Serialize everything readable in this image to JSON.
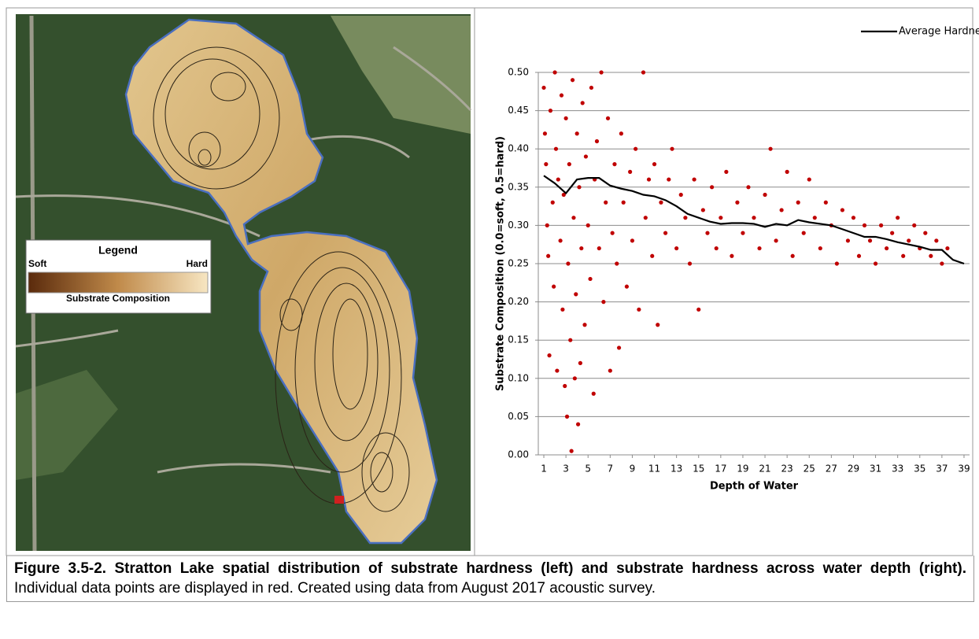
{
  "map": {
    "legend_title": "Legend",
    "soft_label": "Soft",
    "hard_label": "Hard",
    "bar_label": "Substrate Composition"
  },
  "chart_data": {
    "type": "scatter",
    "xlabel": "Depth of Water",
    "ylabel": "Substrate Composition (0.0=soft, 0.5=hard)",
    "xlim": [
      0.5,
      39.5
    ],
    "xticks": [
      1,
      3,
      5,
      7,
      9,
      11,
      13,
      15,
      17,
      19,
      21,
      23,
      25,
      27,
      29,
      31,
      33,
      35,
      37,
      39
    ],
    "ylim": [
      0,
      0.5
    ],
    "yticks": [
      {
        "value": 0,
        "label": "0.00"
      },
      {
        "value": 0.05,
        "label": "0.05"
      },
      {
        "value": 0.1,
        "label": "0.10"
      },
      {
        "value": 0.15,
        "label": "0.15"
      },
      {
        "value": 0.2,
        "label": "0.20"
      },
      {
        "value": 0.25,
        "label": "0.25"
      },
      {
        "value": 0.3,
        "label": "0.30"
      },
      {
        "value": 0.35,
        "label": "0.35"
      },
      {
        "value": 0.4,
        "label": "0.40"
      },
      {
        "value": 0.45,
        "label": "0.45"
      },
      {
        "value": 0.5,
        "label": "0.50"
      }
    ],
    "grid": true,
    "legend": "top-right",
    "series": [
      {
        "color": "#c00000",
        "x": [
          1.0,
          1.1,
          1.2,
          1.3,
          1.4,
          1.5,
          1.6,
          1.8,
          1.9,
          2.0,
          2.1,
          2.2,
          2.3,
          2.5,
          2.6,
          2.7,
          2.8,
          2.9,
          3.0,
          3.1,
          3.2,
          3.3,
          3.4,
          3.5,
          3.6,
          3.7,
          3.8,
          3.9,
          4.0,
          4.1,
          4.2,
          4.3,
          4.4,
          4.5,
          4.7,
          4.8,
          5.0,
          5.2,
          5.3,
          5.5,
          5.6,
          5.8,
          6.0,
          6.2,
          6.4,
          6.6,
          6.8,
          7.0,
          7.2,
          7.4,
          7.6,
          7.8,
          8.0,
          8.2,
          8.5,
          8.8,
          9.0,
          9.3,
          9.6,
          10.0,
          10.2,
          10.5,
          10.8,
          11.0,
          11.3,
          11.6,
          12.0,
          12.3,
          12.6,
          13.0,
          13.4,
          13.8,
          14.2,
          14.6,
          15.0,
          15.4,
          15.8,
          16.2,
          16.6,
          17.0,
          17.5,
          18.0,
          18.5,
          19.0,
          19.5,
          20.0,
          20.5,
          21.0,
          21.5,
          22.0,
          22.5,
          23.0,
          23.5,
          24.0,
          24.5,
          25.0,
          25.5,
          26.0,
          26.5,
          27.0,
          27.5,
          28.0,
          28.5,
          29.0,
          29.5,
          30.0,
          30.5,
          31.0,
          31.5,
          32.0,
          32.5,
          33.0,
          33.5,
          34.0,
          34.5,
          35.0,
          35.5,
          36.0,
          36.5,
          37.0,
          37.5
        ],
        "values": [
          0.48,
          0.42,
          0.38,
          0.3,
          0.26,
          0.13,
          0.45,
          0.33,
          0.22,
          0.5,
          0.4,
          0.11,
          0.36,
          0.28,
          0.47,
          0.19,
          0.34,
          0.09,
          0.44,
          0.05,
          0.25,
          0.38,
          0.15,
          0.005,
          0.49,
          0.31,
          0.1,
          0.21,
          0.42,
          0.04,
          0.35,
          0.12,
          0.27,
          0.46,
          0.17,
          0.39,
          0.3,
          0.23,
          0.48,
          0.08,
          0.36,
          0.41,
          0.27,
          0.5,
          0.2,
          0.33,
          0.44,
          0.11,
          0.29,
          0.38,
          0.25,
          0.14,
          0.42,
          0.33,
          0.22,
          0.37,
          0.28,
          0.4,
          0.19,
          0.5,
          0.31,
          0.36,
          0.26,
          0.38,
          0.17,
          0.33,
          0.29,
          0.36,
          0.4,
          0.27,
          0.34,
          0.31,
          0.25,
          0.36,
          0.19,
          0.32,
          0.29,
          0.35,
          0.27,
          0.31,
          0.37,
          0.26,
          0.33,
          0.29,
          0.35,
          0.31,
          0.27,
          0.34,
          0.4,
          0.28,
          0.32,
          0.37,
          0.26,
          0.33,
          0.29,
          0.36,
          0.31,
          0.27,
          0.33,
          0.3,
          0.25,
          0.32,
          0.28,
          0.31,
          0.26,
          0.3,
          0.28,
          0.25,
          0.3,
          0.27,
          0.29,
          0.31,
          0.26,
          0.28,
          0.3,
          0.27,
          0.29,
          0.26,
          0.28,
          0.25,
          0.27
        ]
      },
      {
        "name": "Average Hardness",
        "type": "line",
        "color": "#000000",
        "x": [
          1,
          2,
          3,
          4,
          5,
          6,
          7,
          8,
          9,
          10,
          11,
          12,
          13,
          14,
          15,
          16,
          17,
          18,
          19,
          20,
          21,
          22,
          23,
          24,
          25,
          26,
          27,
          28,
          29,
          30,
          31,
          32,
          33,
          34,
          35,
          36,
          37,
          38,
          39
        ],
        "values": [
          0.365,
          0.355,
          0.342,
          0.36,
          0.362,
          0.362,
          0.352,
          0.348,
          0.345,
          0.34,
          0.338,
          0.333,
          0.325,
          0.315,
          0.31,
          0.305,
          0.302,
          0.303,
          0.303,
          0.302,
          0.298,
          0.302,
          0.3,
          0.307,
          0.304,
          0.302,
          0.3,
          0.295,
          0.29,
          0.285,
          0.285,
          0.282,
          0.278,
          0.275,
          0.272,
          0.268,
          0.268,
          0.255,
          0.25
        ]
      }
    ]
  },
  "caption": {
    "bold": "Figure 3.5-2. Stratton Lake spatial distribution of substrate hardness (left) and substrate hardness across water depth (right).",
    "text": "Individual data points are displayed in red.  Created using data from August 2017 acoustic survey."
  }
}
